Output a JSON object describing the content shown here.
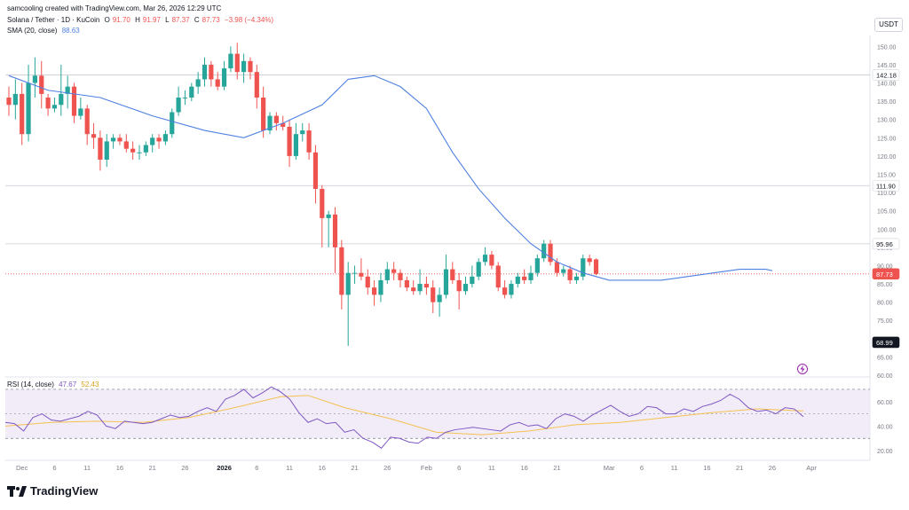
{
  "header": {
    "creator_line": "samcooling created with TradingView.com, Mar 26, 2026 12:29 UTC",
    "symbol": "Solana / Tether · 1D · KuCoin",
    "ohlc": {
      "o_label": "O",
      "o": "91.70",
      "h_label": "H",
      "h": "91.97",
      "l_label": "L",
      "l": "87.37",
      "c_label": "C",
      "c": "87.73",
      "change": "−3.98 (−4.34%)"
    },
    "sma_label": "SMA (20, close)",
    "sma_value": "88.63",
    "rsi_label": "RSI (14, close)",
    "rsi_value": "47.67",
    "rsi_ma_value": "52.43"
  },
  "currency_badge": "USDT",
  "brand": {
    "name": "TradingView"
  },
  "colors": {
    "up": "#26a69a",
    "down": "#ef5350",
    "sma": "#4f80e1",
    "rsi": "#7e57c2",
    "rsi_ma": "#f5c150",
    "last": "#ef5350"
  },
  "chart_data": {
    "type": "candlestick",
    "price_axis": {
      "ticks": [
        60,
        65,
        70,
        75,
        80,
        85,
        90,
        95,
        100,
        105,
        110,
        115,
        120,
        125,
        130,
        135,
        140,
        145,
        150
      ],
      "ylim": [
        60,
        153
      ]
    },
    "price_labels": [
      {
        "value": 142.18,
        "text": "142.18",
        "style": "level"
      },
      {
        "value": 111.9,
        "text": "111.90",
        "style": "level"
      },
      {
        "value": 95.96,
        "text": "95.96",
        "style": "level"
      },
      {
        "value": 87.73,
        "text": "87.73",
        "style": "last"
      },
      {
        "value": 68.99,
        "text": "68.99",
        "style": "dark"
      }
    ],
    "horizontal_levels": [
      142.18,
      111.9,
      95.96
    ],
    "last_price": 87.73,
    "x_ticks": [
      {
        "label": "Dec",
        "index": 2,
        "bold": false
      },
      {
        "label": "6",
        "index": 7,
        "bold": false
      },
      {
        "label": "11",
        "index": 12,
        "bold": false
      },
      {
        "label": "16",
        "index": 17,
        "bold": false
      },
      {
        "label": "21",
        "index": 22,
        "bold": false
      },
      {
        "label": "26",
        "index": 27,
        "bold": false
      },
      {
        "label": "2026",
        "index": 33,
        "bold": true
      },
      {
        "label": "6",
        "index": 38,
        "bold": false
      },
      {
        "label": "11",
        "index": 43,
        "bold": false
      },
      {
        "label": "16",
        "index": 48,
        "bold": false
      },
      {
        "label": "21",
        "index": 53,
        "bold": false
      },
      {
        "label": "26",
        "index": 58,
        "bold": false
      },
      {
        "label": "Feb",
        "index": 64,
        "bold": false
      },
      {
        "label": "6",
        "index": 69,
        "bold": false
      },
      {
        "label": "11",
        "index": 74,
        "bold": false
      },
      {
        "label": "16",
        "index": 79,
        "bold": false
      },
      {
        "label": "21",
        "index": 84,
        "bold": false
      },
      {
        "label": "Mar",
        "index": 92,
        "bold": false
      },
      {
        "label": "6",
        "index": 97,
        "bold": false
      },
      {
        "label": "11",
        "index": 102,
        "bold": false
      },
      {
        "label": "16",
        "index": 107,
        "bold": false
      },
      {
        "label": "21",
        "index": 112,
        "bold": false
      },
      {
        "label": "26",
        "index": 117,
        "bold": false
      },
      {
        "label": "Apr",
        "index": 123,
        "bold": false
      }
    ],
    "candles_ohlc": [
      [
        136,
        139,
        131,
        134
      ],
      [
        134,
        141,
        130,
        137
      ],
      [
        137,
        140,
        123,
        126
      ],
      [
        126,
        145,
        124,
        140
      ],
      [
        140,
        147,
        136,
        142
      ],
      [
        142,
        146,
        133,
        137
      ],
      [
        136,
        137,
        131,
        133
      ],
      [
        133,
        136,
        132,
        134
      ],
      [
        134,
        145,
        131,
        137
      ],
      [
        137,
        142,
        133,
        139
      ],
      [
        139,
        140,
        129,
        131
      ],
      [
        131,
        136,
        130,
        133
      ],
      [
        133,
        134,
        123,
        126
      ],
      [
        126,
        129,
        122,
        125
      ],
      [
        125,
        127,
        116,
        119
      ],
      [
        119,
        126,
        117,
        124
      ],
      [
        124,
        126,
        122,
        125
      ],
      [
        125,
        126,
        123,
        124
      ],
      [
        124,
        126,
        121,
        122
      ],
      [
        122,
        124,
        119,
        121
      ],
      [
        121,
        123,
        119,
        121
      ],
      [
        121,
        124,
        120,
        123
      ],
      [
        123,
        126,
        121,
        125
      ],
      [
        125,
        126,
        122,
        124
      ],
      [
        124,
        127,
        123,
        126
      ],
      [
        126,
        133,
        125,
        132
      ],
      [
        132,
        139,
        131,
        136
      ],
      [
        136,
        138,
        134,
        136
      ],
      [
        136,
        140,
        135,
        139
      ],
      [
        139,
        143,
        137,
        141
      ],
      [
        141,
        147,
        139,
        145
      ],
      [
        145,
        146,
        139,
        141
      ],
      [
        141,
        143,
        138,
        139
      ],
      [
        139,
        146,
        138,
        144
      ],
      [
        144,
        150,
        143,
        148
      ],
      [
        148,
        151,
        141,
        143
      ],
      [
        143,
        148,
        140,
        146
      ],
      [
        146,
        147,
        141,
        143
      ],
      [
        143,
        145,
        133,
        136
      ],
      [
        136,
        139,
        125,
        127
      ],
      [
        127,
        132,
        126,
        131
      ],
      [
        131,
        132,
        127,
        129
      ],
      [
        129,
        131,
        127,
        128
      ],
      [
        128,
        130,
        117,
        120
      ],
      [
        120,
        129,
        119,
        126
      ],
      [
        126,
        129,
        124,
        127
      ],
      [
        127,
        129,
        119,
        121
      ],
      [
        121,
        123,
        107,
        111
      ],
      [
        111,
        112,
        95,
        103
      ],
      [
        103,
        105,
        95,
        104
      ],
      [
        104,
        106,
        88,
        95
      ],
      [
        95,
        97,
        78,
        82
      ],
      [
        82,
        91,
        68,
        88
      ],
      [
        88,
        90,
        85,
        88
      ],
      [
        88,
        92,
        86,
        87
      ],
      [
        87,
        89,
        82,
        84
      ],
      [
        84,
        86,
        79,
        82
      ],
      [
        82,
        88,
        80,
        86
      ],
      [
        86,
        91,
        85,
        89
      ],
      [
        89,
        91,
        86,
        88
      ],
      [
        88,
        89,
        84,
        86
      ],
      [
        86,
        87,
        83,
        84
      ],
      [
        84,
        86,
        82,
        83
      ],
      [
        83,
        89,
        82,
        85
      ],
      [
        85,
        87,
        82,
        84
      ],
      [
        84,
        86,
        77,
        80
      ],
      [
        80,
        84,
        76,
        82
      ],
      [
        82,
        93,
        81,
        89
      ],
      [
        89,
        91,
        85,
        86
      ],
      [
        86,
        88,
        78,
        83
      ],
      [
        83,
        87,
        82,
        85
      ],
      [
        85,
        90,
        84,
        87
      ],
      [
        87,
        92,
        86,
        91
      ],
      [
        91,
        95,
        90,
        93
      ],
      [
        93,
        94,
        89,
        90
      ],
      [
        90,
        91,
        83,
        84
      ],
      [
        84,
        86,
        81,
        82
      ],
      [
        82,
        86,
        81,
        85
      ],
      [
        85,
        88,
        84,
        87
      ],
      [
        87,
        89,
        85,
        86
      ],
      [
        86,
        90,
        85,
        88
      ],
      [
        88,
        93,
        87,
        92
      ],
      [
        92,
        97,
        91,
        96
      ],
      [
        96,
        97,
        90,
        91
      ],
      [
        91,
        92,
        87,
        88
      ],
      [
        88,
        90,
        87,
        89
      ],
      [
        89,
        90,
        85,
        86
      ],
      [
        86,
        88,
        85,
        87
      ],
      [
        87,
        93,
        86,
        92
      ],
      [
        92,
        93,
        90,
        91
      ],
      [
        91.7,
        91.97,
        87.37,
        87.73
      ]
    ],
    "sma": [
      [
        0,
        142
      ],
      [
        6,
        138
      ],
      [
        14,
        136
      ],
      [
        22,
        131
      ],
      [
        30,
        127
      ],
      [
        36,
        125
      ],
      [
        42,
        129
      ],
      [
        48,
        134
      ],
      [
        52,
        141
      ],
      [
        56,
        142
      ],
      [
        60,
        139
      ],
      [
        64,
        133
      ],
      [
        68,
        121
      ],
      [
        72,
        111
      ],
      [
        76,
        103
      ],
      [
        80,
        96
      ],
      [
        84,
        91
      ],
      [
        88,
        88
      ],
      [
        92,
        86
      ],
      [
        96,
        86
      ],
      [
        100,
        86
      ],
      [
        104,
        87
      ],
      [
        108,
        88
      ],
      [
        112,
        89
      ],
      [
        116,
        89
      ],
      [
        117,
        88.6
      ]
    ],
    "rsi_axis": {
      "ticks": [
        20,
        40,
        60
      ],
      "ylim": [
        15,
        75
      ],
      "bands": [
        30,
        70
      ]
    },
    "rsi": [
      [
        0,
        43
      ],
      [
        2,
        42
      ],
      [
        4,
        36
      ],
      [
        6,
        47
      ],
      [
        8,
        50
      ],
      [
        10,
        45
      ],
      [
        12,
        44
      ],
      [
        14,
        46
      ],
      [
        16,
        48
      ],
      [
        18,
        52
      ],
      [
        20,
        49
      ],
      [
        22,
        40
      ],
      [
        24,
        38
      ],
      [
        26,
        44
      ],
      [
        28,
        43
      ],
      [
        30,
        42
      ],
      [
        32,
        43
      ],
      [
        34,
        46
      ],
      [
        36,
        49
      ],
      [
        38,
        47
      ],
      [
        40,
        48
      ],
      [
        42,
        52
      ],
      [
        44,
        55
      ],
      [
        46,
        52
      ],
      [
        48,
        62
      ],
      [
        50,
        65
      ],
      [
        52,
        70
      ],
      [
        54,
        63
      ],
      [
        56,
        67
      ],
      [
        58,
        72
      ],
      [
        60,
        68
      ],
      [
        62,
        62
      ],
      [
        64,
        51
      ],
      [
        66,
        43
      ],
      [
        68,
        46
      ],
      [
        70,
        42
      ],
      [
        72,
        43
      ],
      [
        74,
        35
      ],
      [
        76,
        37
      ],
      [
        78,
        30
      ],
      [
        80,
        27
      ],
      [
        82,
        22
      ],
      [
        84,
        31
      ],
      [
        86,
        30
      ],
      [
        88,
        27
      ],
      [
        90,
        26
      ],
      [
        92,
        31
      ],
      [
        94,
        30
      ],
      [
        96,
        35
      ],
      [
        98,
        37
      ],
      [
        100,
        38
      ],
      [
        102,
        39
      ],
      [
        104,
        38
      ],
      [
        106,
        37
      ],
      [
        108,
        36
      ],
      [
        110,
        41
      ],
      [
        112,
        43
      ],
      [
        114,
        40
      ],
      [
        116,
        41
      ],
      [
        118,
        38
      ],
      [
        120,
        46
      ],
      [
        122,
        50
      ],
      [
        124,
        48
      ],
      [
        126,
        44
      ],
      [
        128,
        49
      ],
      [
        130,
        53
      ],
      [
        132,
        57
      ],
      [
        134,
        52
      ],
      [
        136,
        48
      ],
      [
        138,
        50
      ],
      [
        140,
        56
      ],
      [
        142,
        55
      ],
      [
        144,
        50
      ],
      [
        146,
        50
      ],
      [
        148,
        54
      ],
      [
        150,
        52
      ],
      [
        152,
        56
      ],
      [
        154,
        58
      ],
      [
        156,
        61
      ],
      [
        158,
        66
      ],
      [
        160,
        62
      ],
      [
        162,
        55
      ],
      [
        164,
        52
      ],
      [
        166,
        53
      ],
      [
        168,
        50
      ],
      [
        170,
        55
      ],
      [
        172,
        54
      ],
      [
        174,
        47.7
      ]
    ],
    "rsi_ma": [
      [
        0,
        40
      ],
      [
        10,
        43
      ],
      [
        20,
        44
      ],
      [
        30,
        43
      ],
      [
        40,
        47
      ],
      [
        50,
        55
      ],
      [
        60,
        64
      ],
      [
        66,
        65
      ],
      [
        74,
        55
      ],
      [
        84,
        46
      ],
      [
        94,
        35
      ],
      [
        104,
        33
      ],
      [
        114,
        36
      ],
      [
        124,
        41
      ],
      [
        134,
        43
      ],
      [
        144,
        47
      ],
      [
        154,
        51
      ],
      [
        164,
        54
      ],
      [
        174,
        52.4
      ]
    ]
  }
}
